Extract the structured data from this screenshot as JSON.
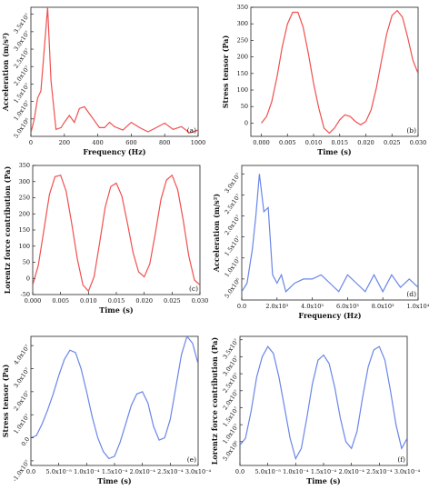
{
  "figure": {
    "colors": {
      "red": "#f05050",
      "blue": "#6a86e8",
      "axis": "#222222"
    }
  },
  "chart_data": [
    {
      "panel_label": "(a)",
      "type": "line",
      "color": "red",
      "xlabel": "Frequency (Hz)",
      "ylabel": "Acceleration (m/s²)",
      "xlim": [
        0,
        1000
      ],
      "ylim": [
        0,
        37000000.0
      ],
      "xticks": [
        0,
        200,
        400,
        600,
        800,
        1000
      ],
      "xtick_labels": [
        "0",
        "200",
        "400",
        "600",
        "800",
        "1000"
      ],
      "yticks": [
        5000000.0,
        10000000.0,
        15000000.0,
        20000000.0,
        25000000.0,
        30000000.0,
        35000000.0
      ],
      "ytick_labels": [
        "5.0x10⁶",
        "1.0x10⁷",
        "1.5x10⁷",
        "2.0x10⁷",
        "2.5x10⁷",
        "3.0x10⁷",
        "3.5x10⁷"
      ],
      "x": [
        0,
        20,
        40,
        60,
        80,
        100,
        120,
        150,
        180,
        200,
        230,
        260,
        290,
        320,
        350,
        380,
        410,
        440,
        470,
        500,
        550,
        600,
        650,
        700,
        750,
        800,
        850,
        900,
        950,
        1000
      ],
      "y": [
        1000000.0,
        5000000.0,
        11000000.0,
        13000000.0,
        25000000.0,
        37000000.0,
        16000000.0,
        2000000.0,
        2500000.0,
        4000000.0,
        6000000.0,
        4000000.0,
        8000000.0,
        8500000.0,
        6500000.0,
        4500000.0,
        2500000.0,
        2500000.0,
        4000000.0,
        2800000.0,
        1800000.0,
        4000000.0,
        2500000.0,
        1300000.0,
        2500000.0,
        3800000.0,
        2000000.0,
        2800000.0,
        1000000.0,
        1800000.0
      ]
    },
    {
      "panel_label": "(b)",
      "type": "line",
      "color": "red",
      "xlabel": "Time (s)",
      "ylabel": "Stress tensor (Pa)",
      "xlim": [
        -0.002,
        0.03
      ],
      "ylim": [
        -40,
        350
      ],
      "xticks": [
        0,
        0.005,
        0.01,
        0.015,
        0.02,
        0.025,
        0.03
      ],
      "xtick_labels": [
        "0.000",
        "0.005",
        "0.010",
        "0.015",
        "0.020",
        "0.025",
        "0.030"
      ],
      "yticks": [
        -50,
        0,
        50,
        100,
        150,
        200,
        250,
        300,
        350
      ],
      "ytick_labels": [
        "-50",
        "0",
        "50",
        "100",
        "150",
        "200",
        "250",
        "300",
        "350"
      ],
      "x": [
        0,
        0.001,
        0.002,
        0.003,
        0.004,
        0.005,
        0.006,
        0.007,
        0.008,
        0.009,
        0.01,
        0.011,
        0.012,
        0.013,
        0.014,
        0.015,
        0.016,
        0.017,
        0.018,
        0.019,
        0.02,
        0.021,
        0.022,
        0.023,
        0.024,
        0.025,
        0.026,
        0.027,
        0.028,
        0.029,
        0.03
      ],
      "y": [
        0,
        20,
        65,
        140,
        230,
        300,
        335,
        335,
        290,
        210,
        120,
        45,
        -15,
        -30,
        -15,
        10,
        25,
        20,
        5,
        -5,
        5,
        40,
        105,
        190,
        270,
        325,
        340,
        320,
        260,
        190,
        150
      ]
    },
    {
      "panel_label": "(c)",
      "type": "line",
      "color": "red",
      "xlabel": "Time (s)",
      "ylabel": "Lorentz force contribution (Pa)",
      "xlim": [
        0,
        0.03
      ],
      "ylim": [
        -50,
        350
      ],
      "xticks": [
        0,
        0.005,
        0.01,
        0.015,
        0.02,
        0.025,
        0.03
      ],
      "xtick_labels": [
        "0.000",
        "0.005",
        "0.010",
        "0.015",
        "0.020",
        "0.025",
        "0.030"
      ],
      "yticks": [
        -50,
        0,
        50,
        100,
        150,
        200,
        250,
        300,
        350
      ],
      "ytick_labels": [
        "-50",
        "0",
        "50",
        "100",
        "150",
        "200",
        "250",
        "300",
        "350"
      ],
      "x": [
        0,
        0.001,
        0.002,
        0.003,
        0.004,
        0.005,
        0.006,
        0.007,
        0.008,
        0.009,
        0.01,
        0.011,
        0.012,
        0.013,
        0.014,
        0.015,
        0.016,
        0.017,
        0.018,
        0.019,
        0.02,
        0.021,
        0.022,
        0.023,
        0.024,
        0.025,
        0.026,
        0.027,
        0.028,
        0.029,
        0.03
      ],
      "y": [
        -20,
        40,
        150,
        260,
        315,
        320,
        270,
        170,
        60,
        -20,
        -40,
        5,
        110,
        220,
        285,
        295,
        255,
        170,
        80,
        20,
        5,
        45,
        140,
        245,
        305,
        320,
        275,
        180,
        70,
        -5,
        -20
      ]
    },
    {
      "panel_label": "(d)",
      "type": "line",
      "color": "blue",
      "xlabel": "Frequency (Hz)",
      "ylabel": "Acceleration (m/s²)",
      "xlim": [
        0,
        10000
      ],
      "ylim": [
        0,
        32000000.0
      ],
      "xticks": [
        0,
        2000,
        4000,
        6000,
        8000,
        10000
      ],
      "xtick_labels": [
        "0.0",
        "2.0x10³",
        "4.0x10³",
        "6.0x10³",
        "8.0x10³",
        "1.0x10⁴"
      ],
      "yticks": [
        5000000.0,
        10000000.0,
        15000000.0,
        20000000.0,
        25000000.0,
        30000000.0
      ],
      "ytick_labels": [
        "5.0x10⁶",
        "1.0x10⁷",
        "1.5x10⁷",
        "2.0x10⁷",
        "2.5x10⁷",
        "3.0x10⁷"
      ],
      "x": [
        0,
        300,
        600,
        800,
        1000,
        1250,
        1500,
        1750,
        2000,
        2250,
        2500,
        2750,
        3000,
        3500,
        4000,
        4500,
        5000,
        5500,
        6000,
        6500,
        7000,
        7500,
        8000,
        8500,
        9000,
        9500,
        10000
      ],
      "y": [
        2000000.0,
        4000000.0,
        12000000.0,
        20000000.0,
        30000000.0,
        21000000.0,
        22000000.0,
        6000000.0,
        4000000.0,
        6000000.0,
        2000000.0,
        3000000.0,
        4000000.0,
        5000000.0,
        5000000.0,
        6000000.0,
        4000000.0,
        2000000.0,
        6000000.0,
        4000000.0,
        2000000.0,
        6000000.0,
        2000000.0,
        6000000.0,
        3000000.0,
        5000000.0,
        3000000.0
      ]
    },
    {
      "panel_label": "(e)",
      "type": "line",
      "color": "blue",
      "xlabel": "Time (s)",
      "ylabel": "Stress tensor (Pa)",
      "xlim": [
        0,
        0.0003
      ],
      "ylim": [
        -12000000.0,
        44000000.0
      ],
      "xticks": [
        0,
        5e-05,
        0.0001,
        0.00015,
        0.0002,
        0.00025,
        0.0003
      ],
      "xtick_labels": [
        "0.0",
        "5.0x10⁻⁵",
        "1.0x10⁻⁴",
        "1.5x10⁻⁴",
        "2.0x10⁻⁴",
        "2.5x10⁻⁴",
        "3.0x10⁻⁴"
      ],
      "yticks": [
        -10000000.0,
        0,
        10000000.0,
        20000000.0,
        30000000.0,
        40000000.0
      ],
      "ytick_labels": [
        "-1.0x10⁷",
        "0.0",
        "1.0x10⁷",
        "2.0x10⁷",
        "3.0x10⁷",
        "4.0x10⁷"
      ],
      "x": [
        0,
        1e-05,
        2e-05,
        3e-05,
        4e-05,
        5e-05,
        6e-05,
        7e-05,
        8e-05,
        9e-05,
        0.0001,
        0.00011,
        0.00012,
        0.00013,
        0.00014,
        0.00015,
        0.00016,
        0.00017,
        0.00018,
        0.00019,
        0.0002,
        0.00021,
        0.00022,
        0.00023,
        0.00024,
        0.00025,
        0.00026,
        0.00027,
        0.00028,
        0.00029,
        0.0003
      ],
      "y": [
        0,
        1000000.0,
        6000000.0,
        12000000.0,
        19000000.0,
        27000000.0,
        34000000.0,
        38000000.0,
        37000000.0,
        30000000.0,
        20000000.0,
        9000000.0,
        0,
        -6000000.0,
        -9000000.0,
        -8000000.0,
        -2000000.0,
        6000000.0,
        14000000.0,
        19000000.0,
        20000000.0,
        15000000.0,
        5000000.0,
        -1000000.0,
        0,
        8000000.0,
        22000000.0,
        36000000.0,
        44000000.0,
        41000000.0,
        32000000.0
      ]
    },
    {
      "panel_label": "(f)",
      "type": "line",
      "color": "blue",
      "xlabel": "Time (s)",
      "ylabel": "Lorentz force contribution (Pa)",
      "xlim": [
        0,
        0.0003
      ],
      "ylim": [
        -2000000.0,
        36000000.0
      ],
      "xticks": [
        0,
        5e-05,
        0.0001,
        0.00015,
        0.0002,
        0.00025,
        0.0003
      ],
      "xtick_labels": [
        "0.0",
        "5.0x10⁻⁵",
        "1.0x10⁻⁴",
        "1.5x10⁻⁴",
        "2.0x10⁻⁴",
        "2.5x10⁻⁴",
        "3.0x10⁻⁴"
      ],
      "yticks": [
        5000000.0,
        10000000.0,
        15000000.0,
        20000000.0,
        25000000.0,
        30000000.0,
        35000000.0
      ],
      "ytick_labels": [
        "5.0x10⁶",
        "1.0x10⁷",
        "1.5x10⁷",
        "2.0x10⁷",
        "2.5x10⁷",
        "3.0x10⁷",
        "3.5x10⁷"
      ],
      "x": [
        0,
        1e-05,
        2e-05,
        3e-05,
        4e-05,
        5e-05,
        6e-05,
        7e-05,
        8e-05,
        9e-05,
        0.0001,
        0.00011,
        0.00012,
        0.00013,
        0.00014,
        0.00015,
        0.00016,
        0.00017,
        0.00018,
        0.00019,
        0.0002,
        0.00021,
        0.00022,
        0.00023,
        0.00024,
        0.00025,
        0.00026,
        0.00027,
        0.00028,
        0.00029,
        0.0003
      ],
      "y": [
        4000000.0,
        6000000.0,
        14000000.0,
        24000000.0,
        30000000.0,
        33000000.0,
        31000000.0,
        24000000.0,
        15000000.0,
        6000000.0,
        0,
        3000000.0,
        12000000.0,
        22000000.0,
        29000000.0,
        30500000.0,
        28000000.0,
        21000000.0,
        12000000.0,
        5000000.0,
        3000000.0,
        8000000.0,
        18000000.0,
        27000000.0,
        32000000.0,
        33000000.0,
        29000000.0,
        20000000.0,
        10000000.0,
        3000000.0,
        6000000.0
      ]
    }
  ]
}
